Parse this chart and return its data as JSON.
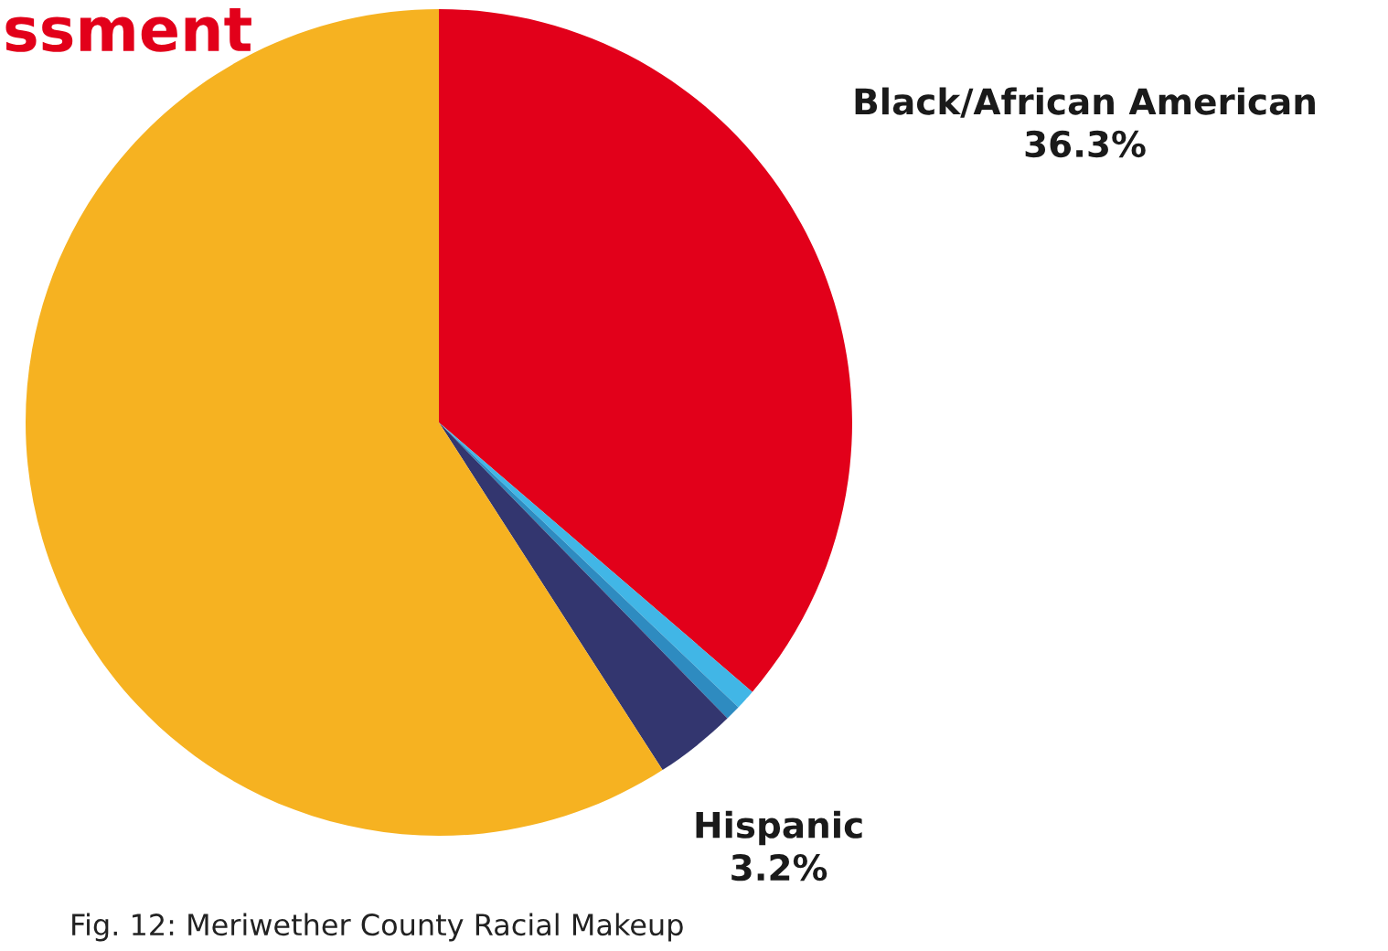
{
  "chart_data": {
    "type": "pie",
    "title": "ssment",
    "categories": [
      "Black/African American",
      null,
      null,
      "Hispanic",
      null
    ],
    "values": [
      36.3,
      0.8,
      0.6,
      3.2,
      59.1
    ],
    "value_labels": [
      "36.3%",
      null,
      null,
      "3.2%",
      null
    ],
    "colors": [
      "#e2001a",
      "#41b6e6",
      "#2e8bc0",
      "#33366f",
      "#f6b221"
    ],
    "annotations": [
      "Fig. 12: Meriwether County Racial Makeup"
    ],
    "legend": false
  }
}
